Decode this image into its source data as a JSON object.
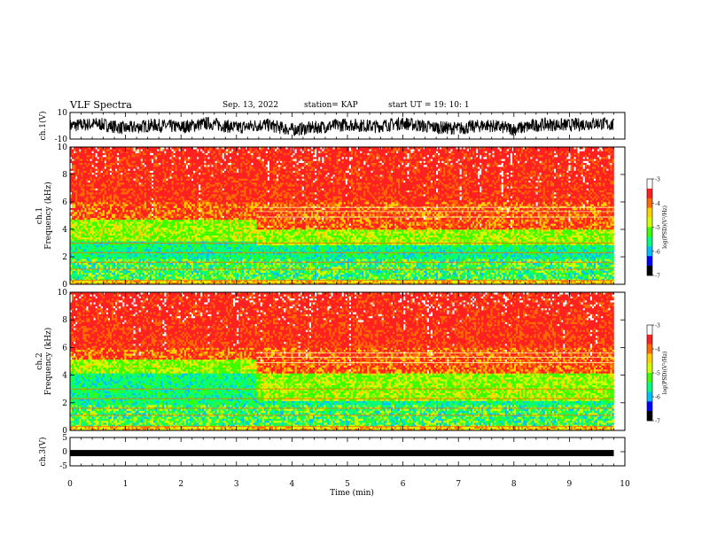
{
  "header": {
    "title": "VLF Spectra",
    "date": "Sep. 13, 2022",
    "station": "station= KAP",
    "start": "start  UT =   19: 10: 1"
  },
  "colors": {
    "trace": "#000000",
    "colormap": [
      "#000000",
      "#0000ff",
      "#00bfff",
      "#00ff7f",
      "#3cff00",
      "#d0ff00",
      "#ffd000",
      "#ff6a00",
      "#ff2020",
      "#ffffff"
    ]
  },
  "chart_data": [
    {
      "type": "line",
      "panel": "ch1-waveform",
      "ylabel": "ch.1(V)",
      "ylim": [
        -10,
        10
      ],
      "yticks": [
        "10",
        "-10"
      ],
      "xlim": [
        0,
        10
      ],
      "x": [
        0,
        0.5,
        1,
        1.5,
        2,
        2.5,
        3,
        3.5,
        4,
        4.5,
        5,
        5.5,
        6,
        6.5,
        7,
        7.5,
        8,
        8.5,
        9,
        9.5,
        9.8
      ],
      "values": [
        0,
        1.5,
        -2,
        0.5,
        -1,
        2,
        -1.5,
        1,
        -3,
        -1,
        1,
        -0.5,
        2,
        -1,
        -2,
        0.5,
        -2.5,
        1,
        0.5,
        2,
        0.5
      ]
    },
    {
      "type": "heatmap",
      "panel": "ch1-spectrogram",
      "ylabel": "Frequency  (kHz)",
      "channel": "ch.1",
      "ylim": [
        0,
        10
      ],
      "yticks": [
        "0",
        "2",
        "4",
        "6",
        "8",
        "10"
      ],
      "xlim": [
        0,
        10
      ],
      "data_end_min": 9.8,
      "colorbar": {
        "label": "log(PSD)(V²/Hz)",
        "min": -7,
        "max": -3,
        "ticks": [
          "-3",
          "-4",
          "-5",
          "-6",
          "-7"
        ]
      },
      "segments": [
        {
          "from_min": 0,
          "to_min": 3.35,
          "band_top_khz": 4.7,
          "cyan_top_khz": 3.2,
          "level": 0.45
        },
        {
          "from_min": 3.35,
          "to_min": 9.8,
          "band_top_khz": 4.0,
          "cyan_top_khz": 2.8,
          "level": 0.52
        }
      ]
    },
    {
      "type": "heatmap",
      "panel": "ch2-spectrogram",
      "ylabel": "Frequency  (kHz)",
      "channel": "ch.2",
      "ylim": [
        0,
        10
      ],
      "yticks": [
        "0",
        "2",
        "4",
        "6",
        "8",
        "10"
      ],
      "xlim": [
        0,
        10
      ],
      "data_end_min": 9.8,
      "colorbar": {
        "label": "log(PSD)(V²/Hz)",
        "min": -7,
        "max": -3,
        "ticks": [
          "-3",
          "-4",
          "-5",
          "-6",
          "-7"
        ]
      },
      "segments": [
        {
          "from_min": 0,
          "to_min": 3.35,
          "band_top_khz": 5.2,
          "cyan_top_khz": 4.2,
          "level": 0.35
        },
        {
          "from_min": 3.35,
          "to_min": 9.8,
          "band_top_khz": 4.2,
          "cyan_top_khz": 2.2,
          "level": 0.48
        }
      ]
    },
    {
      "type": "line",
      "panel": "ch3-waveform",
      "ylabel": "ch.3(V)",
      "ylim": [
        -5,
        5
      ],
      "yticks": [
        "5",
        "0",
        "-5"
      ],
      "xlim": [
        0,
        10
      ],
      "xticks": [
        "0",
        "1",
        "2",
        "3",
        "4",
        "5",
        "6",
        "7",
        "8",
        "9",
        "10"
      ],
      "xlabel": "Time  (min)",
      "x": [
        0,
        9.8
      ],
      "values": [
        -0.5,
        -0.5
      ]
    }
  ]
}
